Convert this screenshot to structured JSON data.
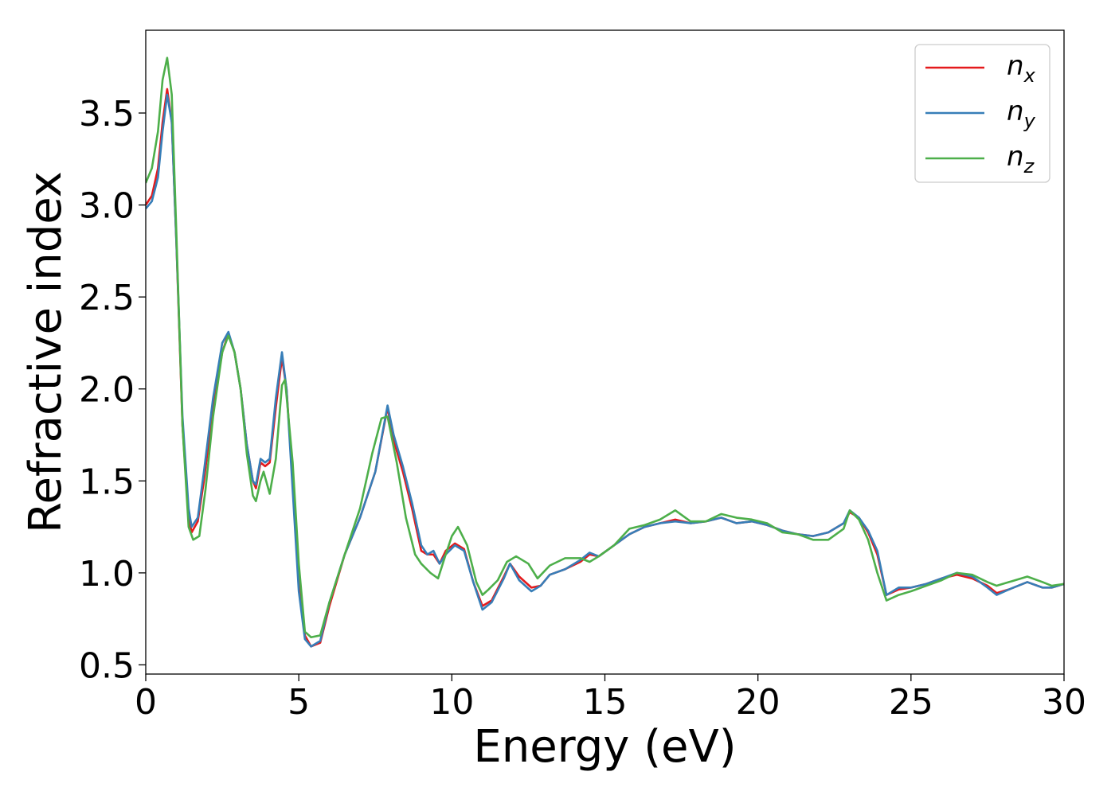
{
  "chart_data": {
    "type": "line",
    "xlabel": "Energy (eV)",
    "ylabel": "Refractive index",
    "xlim": [
      0,
      30
    ],
    "ylim": [
      0.45,
      3.95
    ],
    "xticks": [
      "0",
      "5",
      "10",
      "15",
      "20",
      "25",
      "30"
    ],
    "yticks": [
      "0.5",
      "1.0",
      "1.5",
      "2.0",
      "2.5",
      "3.0",
      "3.5"
    ],
    "grid": false,
    "legend_position": "top-right",
    "series": [
      {
        "name": "n_x",
        "label_base": "n",
        "label_sub": "x",
        "color": "#e41a1c",
        "points": [
          [
            0,
            3.0
          ],
          [
            0.2,
            3.05
          ],
          [
            0.4,
            3.2
          ],
          [
            0.55,
            3.45
          ],
          [
            0.7,
            3.63
          ],
          [
            0.85,
            3.45
          ],
          [
            1.0,
            2.8
          ],
          [
            1.2,
            1.8
          ],
          [
            1.4,
            1.3
          ],
          [
            1.5,
            1.22
          ],
          [
            1.7,
            1.28
          ],
          [
            1.9,
            1.5
          ],
          [
            2.2,
            1.9
          ],
          [
            2.5,
            2.2
          ],
          [
            2.7,
            2.3
          ],
          [
            2.9,
            2.2
          ],
          [
            3.1,
            2.0
          ],
          [
            3.3,
            1.7
          ],
          [
            3.5,
            1.5
          ],
          [
            3.6,
            1.46
          ],
          [
            3.75,
            1.6
          ],
          [
            3.9,
            1.58
          ],
          [
            4.05,
            1.6
          ],
          [
            4.25,
            1.9
          ],
          [
            4.45,
            2.17
          ],
          [
            4.6,
            2.0
          ],
          [
            4.8,
            1.5
          ],
          [
            5.0,
            0.95
          ],
          [
            5.2,
            0.66
          ],
          [
            5.4,
            0.6
          ],
          [
            5.7,
            0.62
          ],
          [
            6.0,
            0.82
          ],
          [
            6.5,
            1.1
          ],
          [
            7.0,
            1.3
          ],
          [
            7.5,
            1.55
          ],
          [
            7.9,
            1.9
          ],
          [
            8.1,
            1.72
          ],
          [
            8.4,
            1.55
          ],
          [
            8.7,
            1.35
          ],
          [
            9.0,
            1.12
          ],
          [
            9.2,
            1.1
          ],
          [
            9.4,
            1.1
          ],
          [
            9.6,
            1.05
          ],
          [
            9.8,
            1.12
          ],
          [
            10.1,
            1.16
          ],
          [
            10.4,
            1.13
          ],
          [
            10.7,
            0.95
          ],
          [
            11.0,
            0.82
          ],
          [
            11.3,
            0.85
          ],
          [
            11.7,
            0.98
          ],
          [
            11.9,
            1.05
          ],
          [
            12.2,
            0.98
          ],
          [
            12.6,
            0.92
          ],
          [
            12.9,
            0.93
          ],
          [
            13.2,
            0.99
          ],
          [
            13.7,
            1.02
          ],
          [
            14.2,
            1.06
          ],
          [
            14.5,
            1.1
          ],
          [
            14.8,
            1.09
          ],
          [
            15.3,
            1.15
          ],
          [
            15.8,
            1.21
          ],
          [
            16.3,
            1.25
          ],
          [
            16.8,
            1.27
          ],
          [
            17.3,
            1.29
          ],
          [
            17.8,
            1.27
          ],
          [
            18.3,
            1.28
          ],
          [
            18.8,
            1.3
          ],
          [
            19.3,
            1.27
          ],
          [
            19.8,
            1.28
          ],
          [
            20.3,
            1.26
          ],
          [
            20.8,
            1.23
          ],
          [
            21.3,
            1.21
          ],
          [
            21.8,
            1.2
          ],
          [
            22.3,
            1.22
          ],
          [
            22.8,
            1.27
          ],
          [
            23.0,
            1.33
          ],
          [
            23.3,
            1.3
          ],
          [
            23.6,
            1.22
          ],
          [
            23.9,
            1.1
          ],
          [
            24.2,
            0.88
          ],
          [
            24.6,
            0.91
          ],
          [
            25.0,
            0.92
          ],
          [
            25.5,
            0.94
          ],
          [
            26.0,
            0.97
          ],
          [
            26.5,
            0.99
          ],
          [
            27.0,
            0.97
          ],
          [
            27.5,
            0.93
          ],
          [
            27.8,
            0.89
          ],
          [
            28.2,
            0.91
          ],
          [
            28.8,
            0.95
          ],
          [
            29.3,
            0.92
          ],
          [
            29.6,
            0.92
          ],
          [
            30.0,
            0.94
          ]
        ]
      },
      {
        "name": "n_y",
        "label_base": "n",
        "label_sub": "y",
        "color": "#377eb8",
        "points": [
          [
            0,
            2.98
          ],
          [
            0.2,
            3.02
          ],
          [
            0.4,
            3.15
          ],
          [
            0.55,
            3.4
          ],
          [
            0.7,
            3.6
          ],
          [
            0.85,
            3.45
          ],
          [
            1.0,
            2.8
          ],
          [
            1.2,
            1.85
          ],
          [
            1.4,
            1.35
          ],
          [
            1.5,
            1.25
          ],
          [
            1.7,
            1.3
          ],
          [
            1.9,
            1.55
          ],
          [
            2.2,
            1.95
          ],
          [
            2.5,
            2.25
          ],
          [
            2.7,
            2.31
          ],
          [
            2.9,
            2.2
          ],
          [
            3.1,
            2.0
          ],
          [
            3.3,
            1.7
          ],
          [
            3.5,
            1.5
          ],
          [
            3.6,
            1.48
          ],
          [
            3.75,
            1.62
          ],
          [
            3.9,
            1.6
          ],
          [
            4.05,
            1.62
          ],
          [
            4.25,
            1.95
          ],
          [
            4.45,
            2.2
          ],
          [
            4.6,
            2.0
          ],
          [
            4.8,
            1.45
          ],
          [
            5.0,
            0.9
          ],
          [
            5.2,
            0.64
          ],
          [
            5.4,
            0.6
          ],
          [
            5.7,
            0.63
          ],
          [
            6.0,
            0.84
          ],
          [
            6.5,
            1.1
          ],
          [
            7.0,
            1.3
          ],
          [
            7.5,
            1.55
          ],
          [
            7.9,
            1.91
          ],
          [
            8.1,
            1.75
          ],
          [
            8.4,
            1.58
          ],
          [
            8.7,
            1.38
          ],
          [
            9.0,
            1.15
          ],
          [
            9.2,
            1.1
          ],
          [
            9.4,
            1.12
          ],
          [
            9.6,
            1.05
          ],
          [
            9.8,
            1.1
          ],
          [
            10.1,
            1.15
          ],
          [
            10.4,
            1.12
          ],
          [
            10.7,
            0.95
          ],
          [
            11.0,
            0.8
          ],
          [
            11.3,
            0.84
          ],
          [
            11.7,
            0.97
          ],
          [
            11.9,
            1.05
          ],
          [
            12.2,
            0.96
          ],
          [
            12.6,
            0.9
          ],
          [
            12.9,
            0.93
          ],
          [
            13.2,
            0.99
          ],
          [
            13.7,
            1.02
          ],
          [
            14.2,
            1.07
          ],
          [
            14.5,
            1.11
          ],
          [
            14.8,
            1.09
          ],
          [
            15.3,
            1.15
          ],
          [
            15.8,
            1.21
          ],
          [
            16.3,
            1.25
          ],
          [
            16.8,
            1.27
          ],
          [
            17.3,
            1.28
          ],
          [
            17.8,
            1.27
          ],
          [
            18.3,
            1.28
          ],
          [
            18.8,
            1.3
          ],
          [
            19.3,
            1.27
          ],
          [
            19.8,
            1.28
          ],
          [
            20.3,
            1.26
          ],
          [
            20.8,
            1.23
          ],
          [
            21.3,
            1.21
          ],
          [
            21.8,
            1.2
          ],
          [
            22.3,
            1.22
          ],
          [
            22.8,
            1.27
          ],
          [
            23.0,
            1.34
          ],
          [
            23.3,
            1.3
          ],
          [
            23.6,
            1.23
          ],
          [
            23.9,
            1.12
          ],
          [
            24.2,
            0.88
          ],
          [
            24.6,
            0.92
          ],
          [
            25.0,
            0.92
          ],
          [
            25.5,
            0.94
          ],
          [
            26.0,
            0.97
          ],
          [
            26.5,
            1.0
          ],
          [
            27.0,
            0.98
          ],
          [
            27.5,
            0.92
          ],
          [
            27.8,
            0.88
          ],
          [
            28.2,
            0.91
          ],
          [
            28.8,
            0.95
          ],
          [
            29.3,
            0.92
          ],
          [
            29.6,
            0.92
          ],
          [
            30.0,
            0.94
          ]
        ]
      },
      {
        "name": "n_z",
        "label_base": "n",
        "label_sub": "z",
        "color": "#4daf4a",
        "points": [
          [
            0,
            3.12
          ],
          [
            0.2,
            3.2
          ],
          [
            0.4,
            3.4
          ],
          [
            0.55,
            3.68
          ],
          [
            0.7,
            3.8
          ],
          [
            0.85,
            3.6
          ],
          [
            1.0,
            2.85
          ],
          [
            1.2,
            1.8
          ],
          [
            1.4,
            1.25
          ],
          [
            1.55,
            1.18
          ],
          [
            1.75,
            1.2
          ],
          [
            1.95,
            1.45
          ],
          [
            2.2,
            1.85
          ],
          [
            2.5,
            2.2
          ],
          [
            2.7,
            2.29
          ],
          [
            2.9,
            2.2
          ],
          [
            3.1,
            2.0
          ],
          [
            3.3,
            1.65
          ],
          [
            3.5,
            1.42
          ],
          [
            3.6,
            1.39
          ],
          [
            3.75,
            1.5
          ],
          [
            3.85,
            1.55
          ],
          [
            4.05,
            1.43
          ],
          [
            4.25,
            1.62
          ],
          [
            4.45,
            2.02
          ],
          [
            4.55,
            2.05
          ],
          [
            4.8,
            1.6
          ],
          [
            5.0,
            1.05
          ],
          [
            5.2,
            0.68
          ],
          [
            5.4,
            0.65
          ],
          [
            5.7,
            0.66
          ],
          [
            6.0,
            0.84
          ],
          [
            6.5,
            1.1
          ],
          [
            7.0,
            1.35
          ],
          [
            7.4,
            1.65
          ],
          [
            7.7,
            1.84
          ],
          [
            7.9,
            1.85
          ],
          [
            8.2,
            1.6
          ],
          [
            8.5,
            1.3
          ],
          [
            8.8,
            1.1
          ],
          [
            9.0,
            1.05
          ],
          [
            9.3,
            1.0
          ],
          [
            9.55,
            0.97
          ],
          [
            9.8,
            1.1
          ],
          [
            10.0,
            1.2
          ],
          [
            10.2,
            1.25
          ],
          [
            10.5,
            1.15
          ],
          [
            10.8,
            0.95
          ],
          [
            11.0,
            0.88
          ],
          [
            11.2,
            0.91
          ],
          [
            11.5,
            0.96
          ],
          [
            11.8,
            1.06
          ],
          [
            12.1,
            1.09
          ],
          [
            12.5,
            1.05
          ],
          [
            12.8,
            0.97
          ],
          [
            13.2,
            1.04
          ],
          [
            13.7,
            1.08
          ],
          [
            14.2,
            1.08
          ],
          [
            14.5,
            1.06
          ],
          [
            14.8,
            1.09
          ],
          [
            15.3,
            1.15
          ],
          [
            15.8,
            1.24
          ],
          [
            16.3,
            1.26
          ],
          [
            16.8,
            1.29
          ],
          [
            17.3,
            1.34
          ],
          [
            17.8,
            1.28
          ],
          [
            18.3,
            1.28
          ],
          [
            18.8,
            1.32
          ],
          [
            19.3,
            1.3
          ],
          [
            19.8,
            1.29
          ],
          [
            20.3,
            1.27
          ],
          [
            20.8,
            1.22
          ],
          [
            21.3,
            1.21
          ],
          [
            21.8,
            1.18
          ],
          [
            22.3,
            1.18
          ],
          [
            22.8,
            1.24
          ],
          [
            23.0,
            1.34
          ],
          [
            23.3,
            1.29
          ],
          [
            23.6,
            1.18
          ],
          [
            23.9,
            1.0
          ],
          [
            24.2,
            0.85
          ],
          [
            24.6,
            0.88
          ],
          [
            25.0,
            0.9
          ],
          [
            25.5,
            0.93
          ],
          [
            26.0,
            0.96
          ],
          [
            26.5,
            1.0
          ],
          [
            27.0,
            0.99
          ],
          [
            27.5,
            0.95
          ],
          [
            27.8,
            0.93
          ],
          [
            28.2,
            0.95
          ],
          [
            28.8,
            0.98
          ],
          [
            29.3,
            0.95
          ],
          [
            29.6,
            0.93
          ],
          [
            30.0,
            0.94
          ]
        ]
      }
    ]
  }
}
